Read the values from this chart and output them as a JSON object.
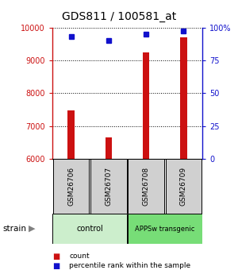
{
  "title": "GDS811 / 100581_at",
  "samples": [
    "GSM26706",
    "GSM26707",
    "GSM26708",
    "GSM26709"
  ],
  "counts": [
    7480,
    6660,
    9250,
    9700
  ],
  "percentiles": [
    93,
    90,
    95,
    97
  ],
  "ylim_left": [
    6000,
    10000
  ],
  "ylim_right": [
    0,
    100
  ],
  "yticks_left": [
    6000,
    7000,
    8000,
    9000,
    10000
  ],
  "yticks_right": [
    0,
    25,
    50,
    75,
    100
  ],
  "bar_color": "#cc1111",
  "dot_color": "#1111cc",
  "groups": [
    {
      "label": "control",
      "indices": [
        0,
        1
      ],
      "color": "#cceecc"
    },
    {
      "label": "APPSw transgenic",
      "indices": [
        2,
        3
      ],
      "color": "#77dd77"
    }
  ],
  "strain_label": "strain",
  "legend_items": [
    {
      "label": "count",
      "color": "#cc1111"
    },
    {
      "label": "percentile rank within the sample",
      "color": "#1111cc"
    }
  ],
  "background_color": "#ffffff",
  "tick_box_color": "#d0d0d0"
}
